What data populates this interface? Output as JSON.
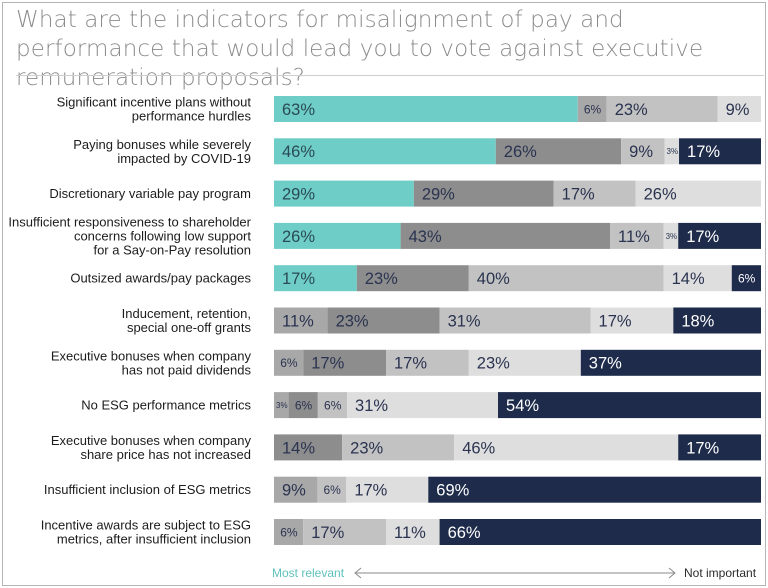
{
  "title": "What are the indicators for misalignment of pay and performance that would lead you to vote against executive remuneration proposals?",
  "footer": {
    "left": "Most relevant",
    "right": "Not important"
  },
  "colors": {
    "scale": [
      "#6ecdc6",
      "#a8a8a8",
      "#8d8d8d",
      "#c2c2c2",
      "#dedede",
      "#1e2b4b"
    ],
    "label_dark": "#2a3350",
    "label_light": "#ffffff"
  },
  "chart_data": {
    "type": "bar",
    "orientation": "horizontal",
    "stacked": true,
    "xlim": [
      0,
      100
    ],
    "scale_labels": [
      "Most relevant",
      "Not important"
    ],
    "categories": [
      "Significant incentive plans without performance hurdles",
      "Paying bonuses while severely impacted by COVID-19",
      "Discretionary variable pay program",
      "Insufficient responsiveness to shareholder concerns following low support for a Say-on-Pay resolution",
      "Outsized awards/pay packages",
      "Inducement, retention, special one-off grants",
      "Executive bonuses when company has not paid dividends",
      "No ESG performance metrics",
      "Executive bonuses when company share price has not increased",
      "Insufficient inclusion of ESG metrics",
      "Incentive awards are subject to ESG metrics, after insufficient inclusion"
    ],
    "series": [
      {
        "values": [
          63,
          46,
          29,
          26,
          17,
          0,
          0,
          0,
          0,
          0,
          0
        ]
      },
      {
        "values": [
          6,
          0,
          0,
          0,
          0,
          11,
          6,
          3,
          0,
          9,
          6
        ]
      },
      {
        "values": [
          0,
          26,
          29,
          43,
          23,
          23,
          17,
          6,
          14,
          0,
          0
        ]
      },
      {
        "values": [
          23,
          9,
          17,
          11,
          40,
          31,
          17,
          6,
          23,
          6,
          17
        ]
      },
      {
        "values": [
          9,
          3,
          26,
          3,
          14,
          17,
          23,
          31,
          46,
          17,
          11
        ]
      },
      {
        "values": [
          0,
          17,
          0,
          17,
          6,
          18,
          37,
          54,
          17,
          69,
          66
        ]
      }
    ]
  }
}
